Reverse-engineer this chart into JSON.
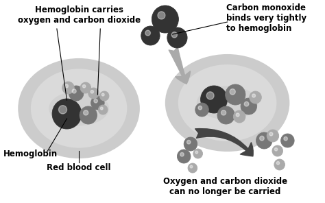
{
  "bg_color": "#ffffff",
  "cell_color": "#cccccc",
  "cell_edge_color": "#999999",
  "cell_highlight": "#e8e8e8",
  "dark_sphere_color": "#333333",
  "mid_sphere_color": "#777777",
  "light_sphere_color": "#aaaaaa",
  "arrow_in_color": "#aaaaaa",
  "arrow_out_color": "#444444",
  "texts": {
    "top_left": "Hemoglobin carries\noxygen and carbon dioxide",
    "hemoglobin_label": "Hemoglobin",
    "rbc_label": "Red blood cell",
    "top_right": "Carbon monoxide\nbinds very tightly\nto hemoglobin",
    "bottom_right": "Oxygen and carbon dioxide\ncan no longer be carried"
  }
}
